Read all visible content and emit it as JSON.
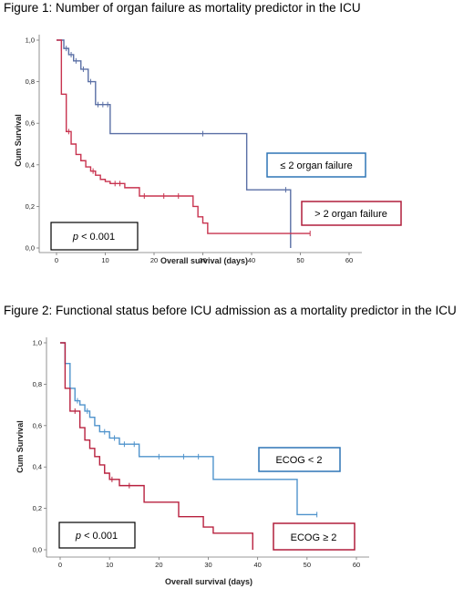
{
  "figures": [
    {
      "title": "Figure 1: Number of organ failure as mortality predictor in the ICU",
      "xlabel": "Overall survival (days)",
      "ylabel": "Cum Survival",
      "xticks": [
        "0",
        "10",
        "20",
        "30",
        "40",
        "50",
        "60"
      ],
      "yticks": [
        "0,0",
        "0,2",
        "0,4",
        "0,6",
        "0,8",
        "1,0"
      ],
      "pvalue": {
        "prefix": "p",
        "rest": " < 0.001"
      },
      "legend": [
        "≤ 2 organ failure",
        "> 2 organ failure"
      ]
    },
    {
      "title": "Figure 2: Functional status before ICU admission as a mortality predictor in the ICU",
      "xlabel": "Overall survival (days)",
      "ylabel": "Cum Survival",
      "xticks": [
        "0",
        "10",
        "20",
        "30",
        "40",
        "50",
        "60"
      ],
      "yticks": [
        "0,0",
        "0,2",
        "0,4",
        "0,6",
        "0,8",
        "1,0"
      ],
      "pvalue": {
        "prefix": "p",
        "rest": " < 0.001"
      },
      "legend": [
        "ECOG < 2",
        "ECOG ≥ 2"
      ]
    }
  ],
  "chart_data": [
    {
      "type": "line",
      "title": "Figure 1: Number of organ failure as mortality predictor in the ICU",
      "xlabel": "Overall survival (days)",
      "ylabel": "Cum Survival",
      "xlim": [
        0,
        60
      ],
      "ylim": [
        0,
        1
      ],
      "grid": false,
      "series": [
        {
          "name": "≤ 2 organ failure",
          "color": "#5a6fa5",
          "x": [
            0,
            1.5,
            2.5,
            3.5,
            5,
            6.5,
            8,
            11,
            39,
            48
          ],
          "y": [
            1.0,
            0.96,
            0.93,
            0.9,
            0.86,
            0.8,
            0.69,
            0.55,
            0.28,
            0.0
          ],
          "censored": [
            [
              1,
              0.96
            ],
            [
              2,
              0.96
            ],
            [
              3,
              0.93
            ],
            [
              4,
              0.9
            ],
            [
              5.5,
              0.86
            ],
            [
              7,
              0.8
            ],
            [
              8.5,
              0.69
            ],
            [
              9.5,
              0.69
            ],
            [
              10.5,
              0.69
            ],
            [
              30,
              0.55
            ],
            [
              47,
              0.28
            ]
          ]
        },
        {
          "name": "> 2 organ failure",
          "color": "#c8334f",
          "x": [
            0,
            1,
            2,
            3,
            4,
            5,
            6,
            7,
            8,
            9,
            10,
            11,
            14,
            17,
            28,
            29,
            30,
            31
          ],
          "y": [
            1.0,
            0.74,
            0.56,
            0.5,
            0.45,
            0.42,
            0.39,
            0.37,
            0.35,
            0.33,
            0.32,
            0.31,
            0.29,
            0.25,
            0.2,
            0.15,
            0.12,
            0.07
          ],
          "censored": [
            [
              2.5,
              0.56
            ],
            [
              7.5,
              0.37
            ],
            [
              12,
              0.31
            ],
            [
              13,
              0.31
            ],
            [
              18,
              0.25
            ],
            [
              22,
              0.25
            ],
            [
              25,
              0.25
            ],
            [
              52,
              0.07
            ]
          ],
          "end_x": 52
        }
      ],
      "annotations": [
        "p < 0.001"
      ]
    },
    {
      "type": "line",
      "title": "Figure 2: Functional status before ICU admission as a mortality predictor in the ICU",
      "xlabel": "Overall survival (days)",
      "ylabel": "Cum Survival",
      "xlim": [
        0,
        60
      ],
      "ylim": [
        0,
        1
      ],
      "grid": false,
      "series": [
        {
          "name": "ECOG < 2",
          "color": "#4f93cc",
          "x": [
            0,
            1,
            2,
            3,
            4,
            5,
            6,
            7,
            8,
            10,
            12,
            16,
            31,
            48
          ],
          "y": [
            1.0,
            0.9,
            0.78,
            0.72,
            0.7,
            0.67,
            0.64,
            0.6,
            0.57,
            0.54,
            0.51,
            0.45,
            0.34,
            0.17
          ],
          "censored": [
            [
              3.5,
              0.72
            ],
            [
              5.5,
              0.67
            ],
            [
              9,
              0.57
            ],
            [
              11,
              0.54
            ],
            [
              13,
              0.51
            ],
            [
              15,
              0.51
            ],
            [
              20,
              0.45
            ],
            [
              25,
              0.45
            ],
            [
              28,
              0.45
            ],
            [
              52,
              0.17
            ]
          ],
          "end_x": 52
        },
        {
          "name": "ECOG ≥ 2",
          "color": "#b8203e",
          "x": [
            0,
            1,
            2,
            4,
            5,
            6,
            7,
            8,
            9,
            10,
            12,
            17,
            24,
            29,
            31,
            39
          ],
          "y": [
            1.0,
            0.78,
            0.67,
            0.59,
            0.53,
            0.49,
            0.45,
            0.41,
            0.37,
            0.34,
            0.31,
            0.23,
            0.16,
            0.11,
            0.08,
            0.0
          ],
          "censored": [
            [
              3,
              0.67
            ],
            [
              10.5,
              0.34
            ],
            [
              14,
              0.31
            ]
          ]
        }
      ],
      "annotations": [
        "p < 0.001"
      ]
    }
  ]
}
